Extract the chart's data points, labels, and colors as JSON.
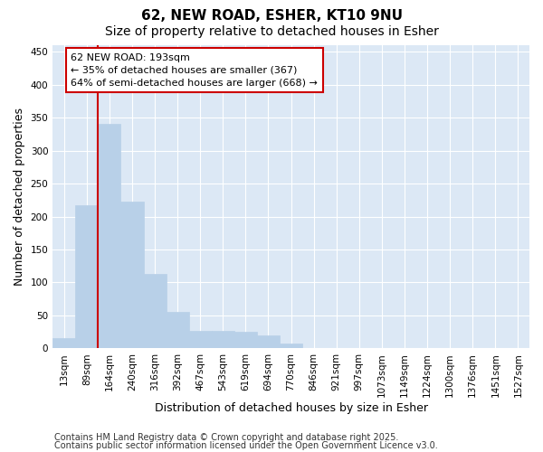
{
  "title_line1": "62, NEW ROAD, ESHER, KT10 9NU",
  "title_line2": "Size of property relative to detached houses in Esher",
  "xlabel": "Distribution of detached houses by size in Esher",
  "ylabel": "Number of detached properties",
  "categories": [
    "13sqm",
    "89sqm",
    "164sqm",
    "240sqm",
    "316sqm",
    "392sqm",
    "467sqm",
    "543sqm",
    "619sqm",
    "694sqm",
    "770sqm",
    "846sqm",
    "921sqm",
    "997sqm",
    "1073sqm",
    "1149sqm",
    "1224sqm",
    "1300sqm",
    "1376sqm",
    "1451sqm",
    "1527sqm"
  ],
  "values": [
    15,
    217,
    340,
    222,
    113,
    55,
    27,
    26,
    25,
    19,
    8,
    1,
    1,
    1,
    1,
    0,
    0,
    0,
    0,
    0,
    0
  ],
  "bar_color": "#b8d0e8",
  "bar_edge_color": "#b8d0e8",
  "vline_x": 1.5,
  "vline_color": "#cc0000",
  "annotation_text": "62 NEW ROAD: 193sqm\n← 35% of detached houses are smaller (367)\n64% of semi-detached houses are larger (668) →",
  "annotation_box_color": "#ffffff",
  "annotation_box_edge": "#cc0000",
  "ylim": [
    0,
    460
  ],
  "yticks": [
    0,
    50,
    100,
    150,
    200,
    250,
    300,
    350,
    400,
    450
  ],
  "bg_color": "#ffffff",
  "plot_bg_color": "#dce8f5",
  "grid_color": "#ffffff",
  "footer_line1": "Contains HM Land Registry data © Crown copyright and database right 2025.",
  "footer_line2": "Contains public sector information licensed under the Open Government Licence v3.0.",
  "title_fontsize": 11,
  "subtitle_fontsize": 10,
  "axis_label_fontsize": 9,
  "tick_fontsize": 7.5,
  "annotation_fontsize": 8,
  "footer_fontsize": 7
}
